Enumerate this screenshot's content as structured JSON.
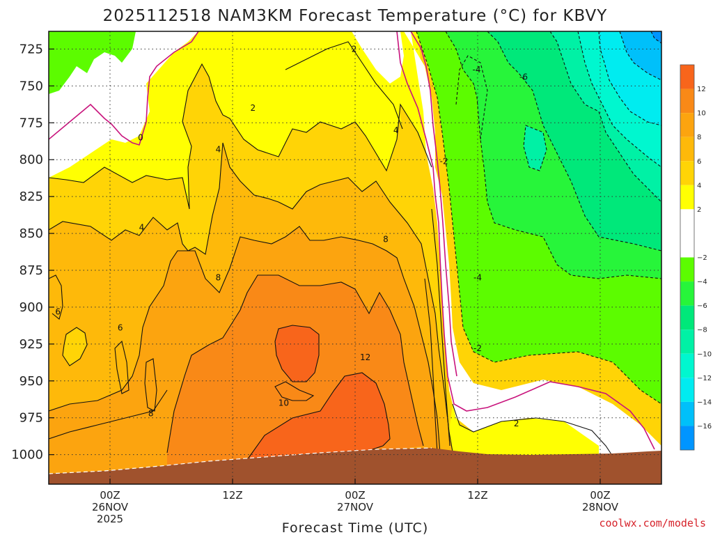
{
  "chart_data": {
    "type": "heatmap",
    "title": "2025112518 NAM3KM Forecast Temperature (°C) for KBVY",
    "xlabel": "Forecast Time (UTC)",
    "ylabel": "",
    "credit": "coolwx.com/models",
    "x_ticks": [
      {
        "hours": 6,
        "lines": [
          "00Z",
          "26NOV",
          "2025"
        ]
      },
      {
        "hours": 18,
        "lines": [
          "12Z"
        ]
      },
      {
        "hours": 30,
        "lines": [
          "00Z",
          "27NOV"
        ]
      },
      {
        "hours": 42,
        "lines": [
          "12Z"
        ]
      },
      {
        "hours": 54,
        "lines": [
          "00Z",
          "28NOV"
        ]
      }
    ],
    "x_range_hours": [
      0,
      60
    ],
    "y_ticks": [
      725,
      750,
      775,
      800,
      825,
      850,
      875,
      900,
      925,
      950,
      975,
      1000
    ],
    "y_range_mb": [
      713,
      1020
    ],
    "colorbar": {
      "labels": [
        12,
        10,
        8,
        6,
        4,
        2,
        -2,
        -4,
        -6,
        -8,
        -10,
        -12,
        -14,
        -16
      ],
      "bands": [
        {
          "lo": 12,
          "hi": 14,
          "color": "#f8651b"
        },
        {
          "lo": 10,
          "hi": 12,
          "color": "#f98917"
        },
        {
          "lo": 8,
          "hi": 10,
          "color": "#fca40f"
        },
        {
          "lo": 6,
          "hi": 8,
          "color": "#feb90a"
        },
        {
          "lo": 4,
          "hi": 6,
          "color": "#ffd406"
        },
        {
          "lo": 2,
          "hi": 4,
          "color": "#ffff02"
        },
        {
          "lo": -2,
          "hi": 2,
          "color": "#ffffff"
        },
        {
          "lo": -4,
          "hi": -2,
          "color": "#5cfc00"
        },
        {
          "lo": -6,
          "hi": -4,
          "color": "#27f53a"
        },
        {
          "lo": -8,
          "hi": -6,
          "color": "#00e87a"
        },
        {
          "lo": -10,
          "hi": -8,
          "color": "#00f1a5"
        },
        {
          "lo": -12,
          "hi": -10,
          "color": "#00f7cf"
        },
        {
          "lo": -14,
          "hi": -12,
          "color": "#00ecf0"
        },
        {
          "lo": -16,
          "hi": -14,
          "color": "#00c0fa"
        },
        {
          "lo": -18,
          "hi": -16,
          "color": "#0095ff"
        }
      ]
    },
    "ground_color": "#a0522d",
    "contour_labels": [
      {
        "text": "2",
        "hours": 29.9,
        "mb": 725
      },
      {
        "text": "2",
        "hours": 20.0,
        "mb": 765
      },
      {
        "text": "0",
        "hours": 9.0,
        "mb": 785
      },
      {
        "text": "4",
        "hours": 16.6,
        "mb": 793
      },
      {
        "text": "4",
        "hours": 34.0,
        "mb": 780
      },
      {
        "text": "4",
        "hours": 9.1,
        "mb": 846
      },
      {
        "text": "8",
        "hours": 33.0,
        "mb": 854
      },
      {
        "text": "8",
        "hours": 16.6,
        "mb": 880
      },
      {
        "text": "6",
        "hours": 0.9,
        "mb": 903
      },
      {
        "text": "6",
        "hours": 7.0,
        "mb": 914
      },
      {
        "text": "8",
        "hours": 10.0,
        "mb": 972
      },
      {
        "text": "10",
        "hours": 23.0,
        "mb": 965
      },
      {
        "text": "12",
        "hours": 31.0,
        "mb": 934
      },
      {
        "text": "-4",
        "hours": 41.9,
        "mb": 739
      },
      {
        "text": "-6",
        "hours": 46.5,
        "mb": 744
      },
      {
        "text": "-2",
        "hours": 38.7,
        "mb": 801
      },
      {
        "text": "-4",
        "hours": 42.0,
        "mb": 880
      },
      {
        "text": "-2",
        "hours": 42.0,
        "mb": 928
      },
      {
        "text": "2",
        "hours": 45.8,
        "mb": 979
      }
    ]
  }
}
